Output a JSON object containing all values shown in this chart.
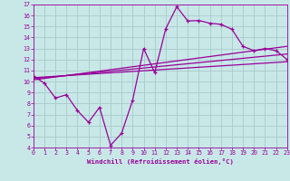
{
  "background_color": "#c8e8e8",
  "grid_color": "#a8caca",
  "line_color": "#990099",
  "xlabel": "Windchill (Refroidissement éolien,°C)",
  "xlim": [
    0,
    23
  ],
  "ylim": [
    4,
    17
  ],
  "xticks": [
    0,
    1,
    2,
    3,
    4,
    5,
    6,
    7,
    8,
    9,
    10,
    11,
    12,
    13,
    14,
    15,
    16,
    17,
    18,
    19,
    20,
    21,
    22,
    23
  ],
  "yticks": [
    4,
    5,
    6,
    7,
    8,
    9,
    10,
    11,
    12,
    13,
    14,
    15,
    16,
    17
  ],
  "main_line_x": [
    0,
    1,
    2,
    3,
    4,
    5,
    6,
    7,
    8,
    9,
    10,
    11,
    12,
    13,
    14,
    15,
    16,
    17,
    18,
    19,
    20,
    21,
    22,
    23
  ],
  "main_line_y": [
    10.5,
    9.85,
    8.5,
    8.8,
    7.35,
    6.3,
    7.65,
    4.2,
    5.3,
    8.3,
    13.0,
    10.8,
    14.8,
    16.8,
    15.5,
    15.55,
    15.3,
    15.2,
    14.75,
    13.2,
    12.8,
    13.0,
    12.8,
    12.0
  ],
  "reg_lines": [
    {
      "x": [
        0,
        23
      ],
      "y": [
        10.35,
        11.8
      ]
    },
    {
      "x": [
        0,
        23
      ],
      "y": [
        10.25,
        12.5
      ]
    },
    {
      "x": [
        0,
        23
      ],
      "y": [
        10.15,
        13.2
      ]
    }
  ]
}
